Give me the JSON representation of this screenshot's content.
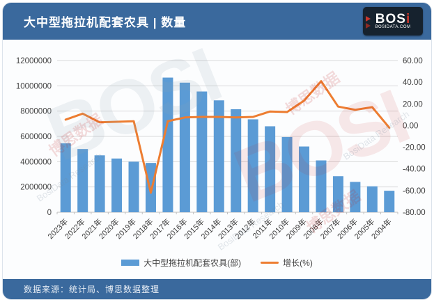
{
  "header": {
    "title": "大中型拖拉机配套农具 | 数量",
    "logo_text": "BOS",
    "logo_text_i": "i",
    "logo_subtext": "BOSIDATA.COM"
  },
  "watermarks": {
    "cn": "博思数据",
    "en": "BosiData Research",
    "logo": "BOSI"
  },
  "legend": {
    "bar_label": "大中型拖拉机配套农具(部)",
    "line_label": "增长(%)"
  },
  "footer": {
    "source_text": "数据来源：统计局、博思数据整理"
  },
  "colors": {
    "header_bg": "#3a699d",
    "bar": "#5b9bd5",
    "line": "#ed7d31",
    "gridline": "#d9d9d9",
    "axis_line": "#bfbfbf",
    "axis_text": "#404040"
  },
  "chart_data": {
    "type": "bar",
    "title": "大中型拖拉机配套农具 | 数量",
    "xlabel": "",
    "ylabel_left": "大中型拖拉机配套农具(部)",
    "ylabel_right": "增长(%)",
    "grid": true,
    "legend_position": "bottom",
    "categories": [
      "2023年",
      "2022年",
      "2021年",
      "2020年",
      "2019年",
      "2018年",
      "2017年",
      "2016年",
      "2015年",
      "2014年",
      "2013年",
      "2012年",
      "2011年",
      "2010年",
      "2009年",
      "2008年",
      "2007年",
      "2006年",
      "2005年",
      "2004年"
    ],
    "series": [
      {
        "name": "大中型拖拉机配套农具(部)",
        "type": "bar",
        "axis": "left",
        "color": "#5b9bd5",
        "values": [
          5450000,
          5000000,
          4500000,
          4250000,
          4000000,
          3900000,
          10650000,
          10250000,
          9550000,
          8850000,
          8150000,
          7350000,
          6800000,
          5950000,
          5200000,
          4100000,
          2850000,
          2400000,
          2050000,
          1700000
        ]
      },
      {
        "name": "增长(%)",
        "type": "line",
        "axis": "right",
        "color": "#ed7d31",
        "values": [
          5.5,
          11,
          3,
          3.5,
          4,
          -62,
          4,
          7.5,
          8,
          8,
          7.5,
          8,
          13,
          12.5,
          23,
          41,
          17.5,
          14.5,
          17,
          -2
        ]
      }
    ],
    "left_axis": {
      "min": 0,
      "max": 12000000,
      "step": 2000000,
      "labels": [
        "12000000",
        "10000000",
        "8000000",
        "6000000",
        "4000000",
        "2000000",
        "0"
      ]
    },
    "right_axis": {
      "min": -80,
      "max": 60,
      "step": 20,
      "labels": [
        "60.00",
        "40.00",
        "20.00",
        "0.00",
        "-20.00",
        "-40.00",
        "-60.00",
        "-80.00"
      ]
    }
  }
}
